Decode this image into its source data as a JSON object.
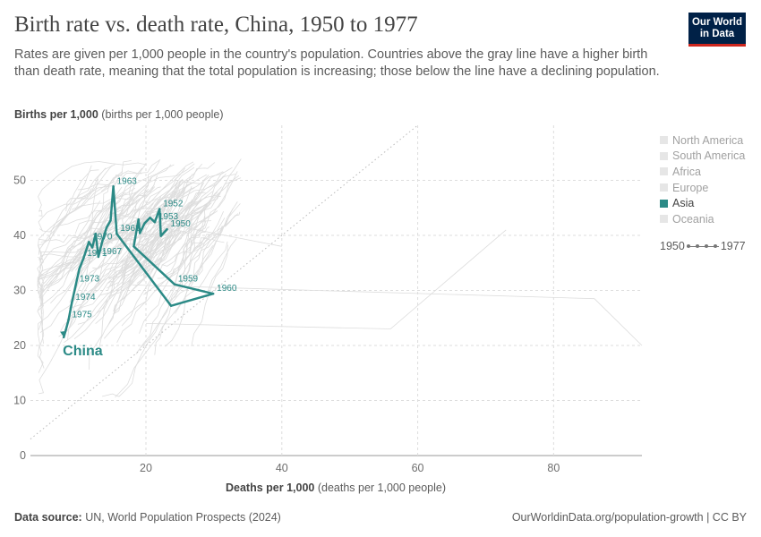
{
  "header": {
    "title": "Birth rate vs. death rate, China, 1950 to 1977",
    "subtitle": "Rates are given per 1,000 people in the country's population. Countries above the gray line have a higher birth than death rate, meaning that the total population is increasing; those below the line have a declining population.",
    "logo_line1": "Our World",
    "logo_line2": "in Data"
  },
  "axes": {
    "y_label_bold": "Births per 1,000",
    "y_label_rest": "(births per 1,000 people)",
    "x_label_bold": "Deaths per 1,000",
    "x_label_rest": "(deaths per 1,000 people)"
  },
  "legend": {
    "items": [
      {
        "label": "North America",
        "active": false
      },
      {
        "label": "South America",
        "active": false
      },
      {
        "label": "Africa",
        "active": false
      },
      {
        "label": "Europe",
        "active": false
      },
      {
        "label": "Asia",
        "active": true
      },
      {
        "label": "Oceania",
        "active": false
      }
    ],
    "timeline_start": "1950",
    "timeline_end": "1977"
  },
  "footer": {
    "source_bold": "Data source:",
    "source_rest": "UN, World Population Prospects (2024)",
    "right": "OurWorldinData.org/population-growth | CC BY"
  },
  "colors": {
    "highlight": "#2b8a86",
    "background_lines": "#dddddd",
    "parity_line": "#bbbbbb"
  },
  "chart_data": {
    "type": "scatter",
    "xlim": [
      3,
      93
    ],
    "ylim": [
      0,
      60
    ],
    "x_ticks": [
      20,
      40,
      60,
      80
    ],
    "y_ticks": [
      0,
      10,
      20,
      30,
      40,
      50
    ],
    "grid": true,
    "reference_line": "births = deaths",
    "series": [
      {
        "name": "China",
        "points": [
          {
            "year": 1950,
            "x": 23.1,
            "y": 41.1,
            "label": "1950"
          },
          {
            "year": 1951,
            "x": 22.2,
            "y": 39.9,
            "label": ""
          },
          {
            "year": 1952,
            "x": 22.0,
            "y": 44.8,
            "label": "1952"
          },
          {
            "year": 1953,
            "x": 21.3,
            "y": 42.4,
            "label": "1953"
          },
          {
            "year": 1954,
            "x": 20.6,
            "y": 43.2,
            "label": ""
          },
          {
            "year": 1955,
            "x": 19.8,
            "y": 42.2,
            "label": ""
          },
          {
            "year": 1956,
            "x": 19.1,
            "y": 40.4,
            "label": ""
          },
          {
            "year": 1957,
            "x": 18.9,
            "y": 42.9,
            "label": ""
          },
          {
            "year": 1958,
            "x": 18.2,
            "y": 38.0,
            "label": ""
          },
          {
            "year": 1959,
            "x": 24.2,
            "y": 31.1,
            "label": "1959"
          },
          {
            "year": 1960,
            "x": 29.9,
            "y": 29.4,
            "label": "1960"
          },
          {
            "year": 1961,
            "x": 23.7,
            "y": 27.2,
            "label": ""
          },
          {
            "year": 1962,
            "x": 15.7,
            "y": 40.3,
            "label": "1962"
          },
          {
            "year": 1963,
            "x": 15.2,
            "y": 48.9,
            "label": "1963"
          },
          {
            "year": 1964,
            "x": 14.8,
            "y": 42.7,
            "label": ""
          },
          {
            "year": 1965,
            "x": 14.2,
            "y": 41.4,
            "label": ""
          },
          {
            "year": 1966,
            "x": 13.6,
            "y": 39.0,
            "label": ""
          },
          {
            "year": 1967,
            "x": 13.0,
            "y": 36.1,
            "label": "1967"
          },
          {
            "year": 1968,
            "x": 12.6,
            "y": 40.3,
            "label": ""
          },
          {
            "year": 1969,
            "x": 12.1,
            "y": 37.8,
            "label": ""
          },
          {
            "year": 1970,
            "x": 11.6,
            "y": 38.8,
            "label": "1970"
          },
          {
            "year": 1971,
            "x": 10.8,
            "y": 35.8,
            "label": "1971"
          },
          {
            "year": 1972,
            "x": 10.2,
            "y": 33.9,
            "label": ""
          },
          {
            "year": 1973,
            "x": 9.7,
            "y": 31.1,
            "label": "1973"
          },
          {
            "year": 1974,
            "x": 9.1,
            "y": 27.8,
            "label": "1974"
          },
          {
            "year": 1975,
            "x": 8.6,
            "y": 24.6,
            "label": "1975"
          },
          {
            "year": 1976,
            "x": 8.2,
            "y": 22.8,
            "label": ""
          },
          {
            "year": 1977,
            "x": 7.9,
            "y": 21.5,
            "label": ""
          }
        ]
      }
    ]
  }
}
